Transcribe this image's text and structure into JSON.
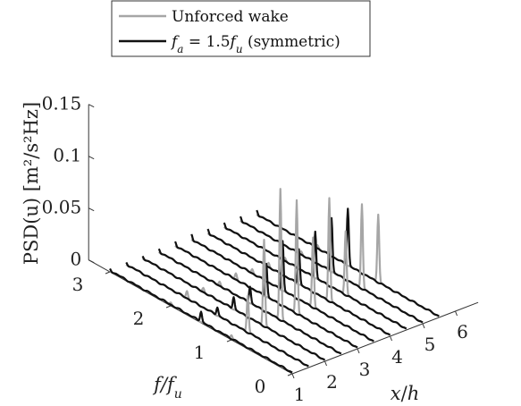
{
  "chart_data": {
    "type": "line",
    "view": "3d-waterfall",
    "ylabel": "PSD(u)  [m²/s²Hz]",
    "flabel": "f/f_u",
    "xlabel": "x/h",
    "ylim": [
      0,
      0.15
    ],
    "y_ticks": [
      "0",
      "0.05",
      "0.1",
      "0.15"
    ],
    "f_ticks": [
      "0",
      "1",
      "2",
      "3"
    ],
    "x_ticks": [
      "1",
      "2",
      "3",
      "4",
      "5",
      "6"
    ],
    "legend": {
      "location": "top-left",
      "entries": [
        {
          "label": "Unforced wake",
          "color": "#a6a6a6"
        },
        {
          "label": "f_a = 1.5f_u (symmetric)",
          "color": "#111111"
        }
      ]
    },
    "x_stations": [
      1,
      1.5,
      2,
      2.5,
      3,
      3.5,
      4,
      4.5,
      5,
      5.5
    ],
    "series": [
      {
        "name": "Unforced wake",
        "color": "#a6a6a6",
        "peaks": [
          [
            [
              1.0,
              0.004
            ],
            [
              2.0,
              0.002
            ]
          ],
          [
            [
              1.0,
              0.036
            ],
            [
              2.0,
              0.007
            ]
          ],
          [
            [
              1.0,
              0.084
            ],
            [
              2.0,
              0.004
            ]
          ],
          [
            [
              1.0,
              0.127
            ],
            [
              2.0,
              0.004
            ]
          ],
          [
            [
              1.0,
              0.11
            ],
            [
              2.0,
              0.006
            ]
          ],
          [
            [
              1.0,
              0.068
            ],
            [
              2.0,
              0.004
            ]
          ],
          [
            [
              1.0,
              0.1
            ],
            [
              2.0,
              0.004
            ]
          ],
          [
            [
              1.0,
              0.062
            ],
            [
              2.0,
              0.003
            ]
          ],
          [
            [
              1.0,
              0.082
            ],
            [
              2.0,
              0.003
            ]
          ],
          [
            [
              1.0,
              0.066
            ],
            [
              2.0,
              0.003
            ]
          ]
        ]
      },
      {
        "name": "f_a = 1.5f_u (symmetric)",
        "color": "#111111",
        "peaks": [
          [
            [
              1.5,
              0.01
            ],
            [
              3.0,
              0.002
            ]
          ],
          [
            [
              1.5,
              0.008
            ],
            [
              3.0,
              0.002
            ]
          ],
          [
            [
              1.5,
              0.012
            ],
            [
              3.0,
              0.002
            ]
          ],
          [
            [
              1.5,
              0.016
            ],
            [
              3.0,
              0.003
            ]
          ],
          [
            [
              1.5,
              0.032
            ],
            [
              3.0,
              0.004
            ]
          ],
          [
            [
              1.5,
              0.048
            ],
            [
              3.0,
              0.005
            ]
          ],
          [
            [
              1.5,
              0.034
            ],
            [
              3.0,
              0.004
            ]
          ],
          [
            [
              1.5,
              0.045
            ],
            [
              3.0,
              0.004
            ]
          ],
          [
            [
              1.5,
              0.052
            ],
            [
              3.0,
              0.004
            ]
          ],
          [
            [
              1.5,
              0.055
            ],
            [
              3.0,
              0.004
            ]
          ]
        ]
      }
    ]
  }
}
